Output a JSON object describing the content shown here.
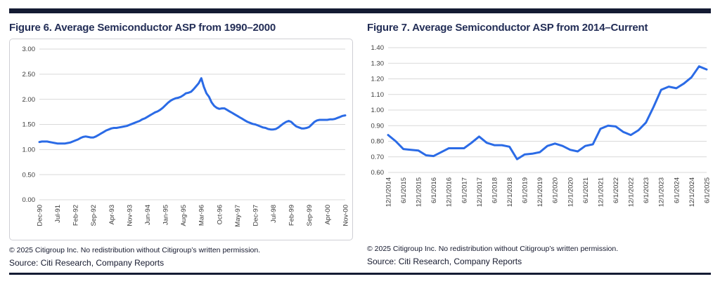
{
  "page": {
    "rule_color": "#141b33",
    "background": "#ffffff"
  },
  "footer": {
    "copyright": "© 2025 Citigroup Inc. No redistribution without Citigroup’s written permission.",
    "source": "Source: Citi Research, Company Reports"
  },
  "chart_data": [
    {
      "type": "line",
      "title": "Figure 6. Average Semiconductor ASP from 1990–2000",
      "frequency": "monthly (Dec-1990 to Nov-2000)",
      "x_tick_labels": [
        "Dec-90",
        "Jul-91",
        "Feb-92",
        "Sep-92",
        "Apr-93",
        "Nov-93",
        "Jun-94",
        "Jan-95",
        "Aug-95",
        "Mar-96",
        "Oct-96",
        "May-97",
        "Dec-97",
        "Jul-98",
        "Feb-99",
        "Sep-99",
        "Apr-00",
        "Nov-00"
      ],
      "tick_every": 7,
      "values": [
        1.15,
        1.16,
        1.16,
        1.16,
        1.15,
        1.14,
        1.13,
        1.12,
        1.12,
        1.12,
        1.12,
        1.13,
        1.14,
        1.16,
        1.18,
        1.2,
        1.23,
        1.25,
        1.26,
        1.25,
        1.24,
        1.24,
        1.26,
        1.29,
        1.32,
        1.35,
        1.38,
        1.4,
        1.42,
        1.43,
        1.43,
        1.44,
        1.45,
        1.46,
        1.47,
        1.49,
        1.51,
        1.53,
        1.55,
        1.57,
        1.6,
        1.62,
        1.65,
        1.68,
        1.71,
        1.74,
        1.76,
        1.79,
        1.83,
        1.88,
        1.93,
        1.97,
        2.0,
        2.02,
        2.03,
        2.05,
        2.08,
        2.12,
        2.13,
        2.15,
        2.2,
        2.26,
        2.32,
        2.42,
        2.25,
        2.12,
        2.05,
        1.94,
        1.87,
        1.83,
        1.81,
        1.82,
        1.82,
        1.79,
        1.76,
        1.73,
        1.7,
        1.67,
        1.64,
        1.61,
        1.58,
        1.55,
        1.53,
        1.51,
        1.5,
        1.48,
        1.46,
        1.44,
        1.43,
        1.41,
        1.4,
        1.4,
        1.41,
        1.44,
        1.48,
        1.52,
        1.55,
        1.57,
        1.55,
        1.5,
        1.46,
        1.44,
        1.42,
        1.42,
        1.43,
        1.45,
        1.5,
        1.55,
        1.58,
        1.59,
        1.59,
        1.59,
        1.59,
        1.6,
        1.6,
        1.61,
        1.63,
        1.65,
        1.67,
        1.68
      ],
      "ylim": [
        0.0,
        3.0
      ],
      "y_ticks": [
        "0.00",
        "0.50",
        "1.00",
        "1.50",
        "2.00",
        "2.50",
        "3.00"
      ],
      "grid": true,
      "legend": "none",
      "line_color": "#2b6be6"
    },
    {
      "type": "line",
      "title": "Figure 7. Average Semiconductor ASP from 2014–Current",
      "frequency": "quarterly (Dec-2014 to Jun-2025)",
      "x_tick_labels": [
        "12/1/2014",
        "6/1/2015",
        "12/1/2015",
        "6/1/2016",
        "12/1/2016",
        "6/1/2017",
        "12/1/2017",
        "6/1/2018",
        "12/1/2018",
        "6/1/2019",
        "12/1/2019",
        "6/1/2020",
        "12/1/2020",
        "6/1/2021",
        "12/1/2021",
        "6/1/2022",
        "12/1/2022",
        "6/1/2023",
        "12/1/2023",
        "6/1/2024",
        "12/1/2024",
        "6/1/2025"
      ],
      "tick_every": 2,
      "values": [
        0.84,
        0.8,
        0.75,
        0.745,
        0.74,
        0.71,
        0.705,
        0.73,
        0.755,
        0.755,
        0.755,
        0.79,
        0.83,
        0.79,
        0.775,
        0.775,
        0.765,
        0.685,
        0.715,
        0.72,
        0.73,
        0.77,
        0.785,
        0.77,
        0.745,
        0.735,
        0.77,
        0.78,
        0.88,
        0.9,
        0.895,
        0.86,
        0.84,
        0.87,
        0.92,
        1.02,
        1.13,
        1.15,
        1.14,
        1.17,
        1.21,
        1.28,
        1.26
      ],
      "ylim": [
        0.6,
        1.4
      ],
      "y_ticks": [
        "0.60",
        "0.70",
        "0.80",
        "0.90",
        "1.00",
        "1.10",
        "1.20",
        "1.30",
        "1.40"
      ],
      "grid": true,
      "legend": "none",
      "line_color": "#2b6be6"
    }
  ]
}
